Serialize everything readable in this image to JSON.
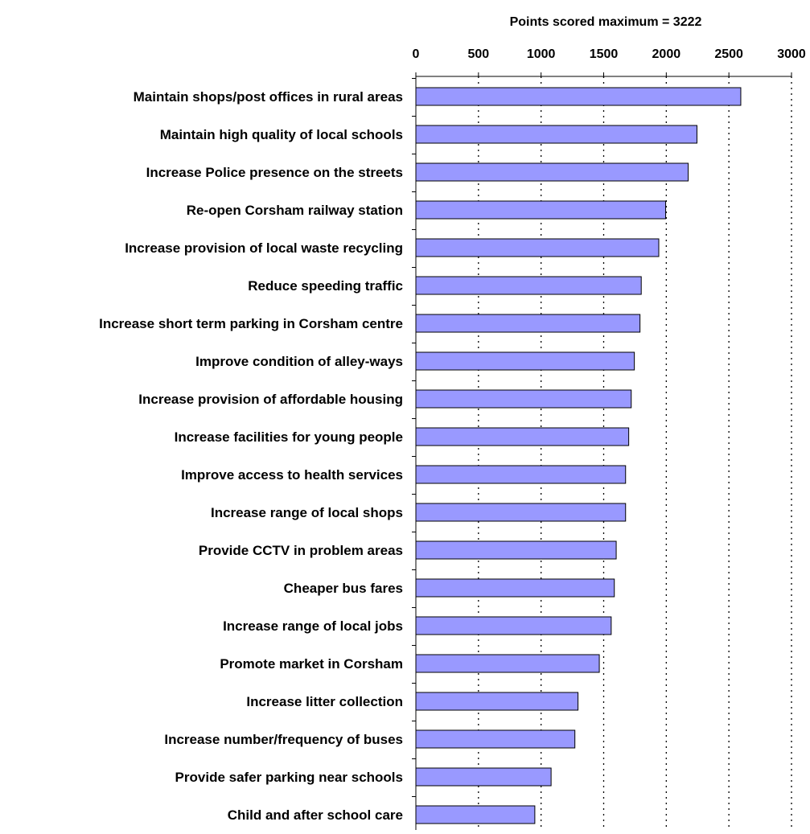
{
  "chart_data": {
    "type": "bar",
    "orientation": "horizontal",
    "xlabel": "Points scored maximum = 3222",
    "ylabel": "",
    "xlim": [
      0,
      3000
    ],
    "xticks": [
      0,
      500,
      1000,
      1500,
      2000,
      2500,
      3000
    ],
    "x_axis_position": "top",
    "grid": "vertical dotted",
    "bar_color": "#9999ff",
    "bar_edge_color": "#000000",
    "categories": [
      "Maintain shops/post offices in rural areas",
      "Maintain high quality of local schools",
      "Increase Police presence on the streets",
      "Re-open Corsham railway station",
      "Increase provision of local waste recycling",
      "Reduce speeding traffic",
      "Increase short term parking in Corsham centre",
      "Improve condition of alley-ways",
      "Increase provision of affordable housing",
      "Increase facilities for young people",
      "Improve access to health services",
      "Increase range of local shops",
      "Provide CCTV in problem areas",
      "Cheaper bus fares",
      "Increase range of local jobs",
      "Promote market in Corsham",
      "Increase litter collection",
      "Increase number/frequency of buses",
      "Provide safer parking near schools",
      "Child and after school care"
    ],
    "values": [
      2595,
      2245,
      2175,
      1995,
      1940,
      1800,
      1790,
      1745,
      1720,
      1700,
      1675,
      1675,
      1600,
      1585,
      1560,
      1465,
      1295,
      1270,
      1080,
      950
    ]
  }
}
